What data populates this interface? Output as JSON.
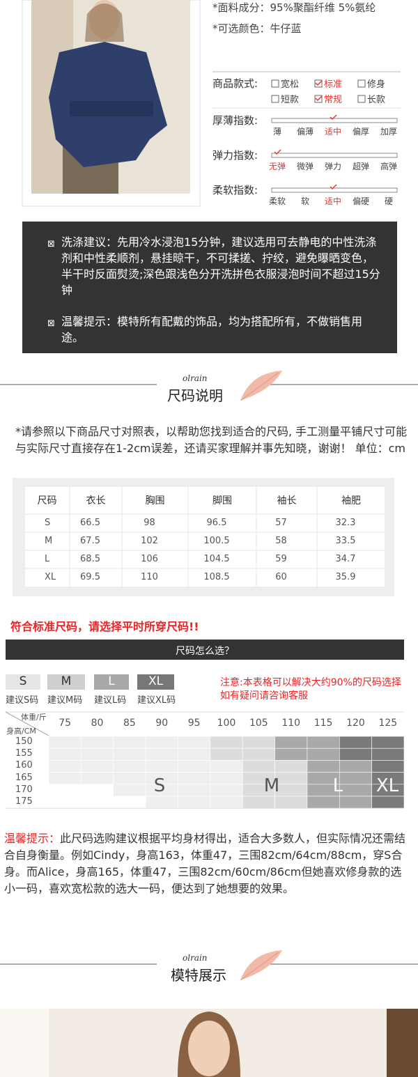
{
  "product_info": {
    "material": "*面料成分：95%聚酯纤维 5%氨纶",
    "color": "*可选颜色：牛仔蓝"
  },
  "style": {
    "label": "商品款式:",
    "options": [
      {
        "text": "宽松",
        "checked": false
      },
      {
        "text": "标准",
        "checked": true
      },
      {
        "text": "修身",
        "checked": false
      },
      {
        "text": "短款",
        "checked": false
      },
      {
        "text": "常规",
        "checked": true
      },
      {
        "text": "长款",
        "checked": false
      }
    ]
  },
  "scales": [
    {
      "label": "厚薄指数:",
      "options": [
        "薄",
        "偏薄",
        "适中",
        "偏厚",
        "加厚"
      ],
      "selected": 2
    },
    {
      "label": "弹力指数:",
      "options": [
        "无弹",
        "微弹",
        "弹力",
        "超弹",
        "高弹"
      ],
      "selected": 0
    },
    {
      "label": "柔软指数:",
      "options": [
        "柔软",
        "软",
        "适中",
        "偏硬",
        "硬"
      ],
      "selected": 2
    }
  ],
  "care": {
    "wash": "洗涤建议：先用冷水浸泡15分钟，建议选用可去静电的中性洗涤剂和中性柔顺剂，悬挂晾干，不可揉搓、拧绞，避免曝晒变色，半干时反面熨烫;深色跟浅色分开洗拼色衣服浸泡时间不超过15分钟",
    "tip": "温馨提示：模特所有配戴的饰品，均为搭配所有，不做销售用途。"
  },
  "size_section": {
    "brand": "olrain",
    "title": "尺码说明",
    "intro": "*请参照以下商品尺寸对照表，以帮助您找到适合的尺码, 手工测量平铺尺寸可能与实际尺寸直接存在1-2cm误差，还请买家理解并事先知晓，谢谢！ 单位：cm"
  },
  "size_table": {
    "header": [
      "尺码",
      "衣长",
      "胸围",
      "脚围",
      "袖长",
      "袖肥"
    ],
    "rows": [
      [
        "S",
        "66.5",
        "98",
        "96.5",
        "57",
        "32.3"
      ],
      [
        "M",
        "67.5",
        "102",
        "100.5",
        "58",
        "33.5"
      ],
      [
        "L",
        "68.5",
        "106",
        "104.5",
        "59",
        "34.7"
      ],
      [
        "XL",
        "69.5",
        "110",
        "108.5",
        "60",
        "35.9"
      ]
    ]
  },
  "size_warning": "符合标准尺码，请选择平时所穿尺码!!",
  "size_guide": {
    "title": "尺码怎么选？",
    "sizes": [
      {
        "name": "S",
        "label": "建议S码"
      },
      {
        "name": "M",
        "label": "建议M码"
      },
      {
        "name": "L",
        "label": "建议L码"
      },
      {
        "name": "XL",
        "label": "建议XL码"
      }
    ],
    "note": [
      "注意:本表格可以解决大约90%的尺码选择",
      "如有疑问请咨询客服"
    ],
    "weight_label": "体重/斤",
    "height_label": "身高/CM",
    "weights": [
      "75",
      "80",
      "85",
      "90",
      "95",
      "100",
      "105",
      "110",
      "115",
      "120",
      "125"
    ],
    "heights": [
      "150",
      "155",
      "160",
      "165",
      "170",
      "175"
    ]
  },
  "tip": {
    "label": "温馨提示：",
    "text": "此尺码选购建议根据平均身材得出，适合大多数人，但实际情况还需结合自身衡量。例如Cindy，身高163，体重47，三围82cm/64cm/88cm，穿S合身。而Alice，身高165，体重47，三围82cm/60cm/86cm但她喜欢修身款的选小一码，喜欢宽松款的选大一码，便达到了她想要的效果。"
  },
  "model_section": {
    "brand": "olrain",
    "title": "模特展示"
  }
}
